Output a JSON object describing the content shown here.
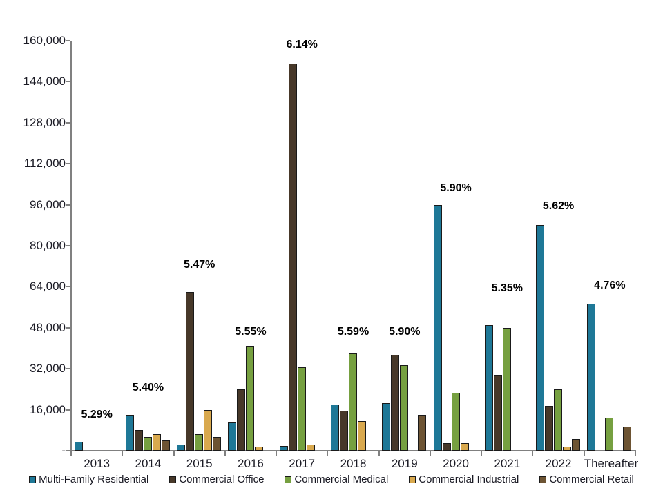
{
  "chart_data": {
    "type": "bar",
    "title": "",
    "categories": [
      "2013",
      "2014",
      "2015",
      "2016",
      "2017",
      "2018",
      "2019",
      "2020",
      "2021",
      "2022",
      "Thereafter"
    ],
    "series": [
      {
        "name": "Multi-Family Residential",
        "color": "#1E7897",
        "values": [
          3500,
          14000,
          2500,
          11000,
          2000,
          18000,
          18500,
          96000,
          49000,
          88000,
          57500
        ]
      },
      {
        "name": "Commercial Office",
        "color": "#473829",
        "values": [
          0,
          8000,
          62000,
          24000,
          151000,
          15500,
          37500,
          3000,
          29500,
          17500,
          0
        ]
      },
      {
        "name": "Commercial Medical",
        "color": "#76A040",
        "values": [
          0,
          5500,
          6500,
          41000,
          32500,
          38000,
          33500,
          22500,
          48000,
          24000,
          13000
        ]
      },
      {
        "name": "Commercial Industrial",
        "color": "#D9A94E",
        "values": [
          0,
          6500,
          16000,
          1500,
          2500,
          11500,
          0,
          3000,
          0,
          1500,
          0
        ]
      },
      {
        "name": "Commercial Retail",
        "color": "#6D5433",
        "values": [
          0,
          4000,
          5500,
          0,
          0,
          0,
          14000,
          0,
          0,
          4500,
          9500
        ]
      }
    ],
    "annotations": [
      {
        "category": "2013",
        "label": "5.29%",
        "label_y": 11500
      },
      {
        "category": "2014",
        "label": "5.40%",
        "label_y": 22000
      },
      {
        "category": "2015",
        "label": "5.47%",
        "label_y": 70000
      },
      {
        "category": "2016",
        "label": "5.55%",
        "label_y": 44000
      },
      {
        "category": "2017",
        "label": "6.14%",
        "label_y": 156000
      },
      {
        "category": "2018",
        "label": "5.59%",
        "label_y": 44000
      },
      {
        "category": "2019",
        "label": "5.90%",
        "label_y": 44000
      },
      {
        "category": "2020",
        "label": "5.90%",
        "label_y": 100000
      },
      {
        "category": "2021",
        "label": "5.35%",
        "label_y": 61000
      },
      {
        "category": "2022",
        "label": "5.62%",
        "label_y": 93000
      },
      {
        "category": "Thereafter",
        "label": "4.76%",
        "label_y": 62000
      }
    ],
    "y_axis": {
      "min": 0,
      "max": 160000,
      "step": 16000,
      "tick_labels": [
        "-",
        "16,000",
        "32,000",
        "48,000",
        "64,000",
        "80,000",
        "96,000",
        "112,000",
        "128,000",
        "144,000",
        "160,000"
      ]
    },
    "legend_position": "bottom",
    "grid": false,
    "colors": {
      "axis": "#808080",
      "text": "#1A1A24",
      "annotation": "#000000",
      "bar_outline": "#1A1A1A"
    }
  }
}
